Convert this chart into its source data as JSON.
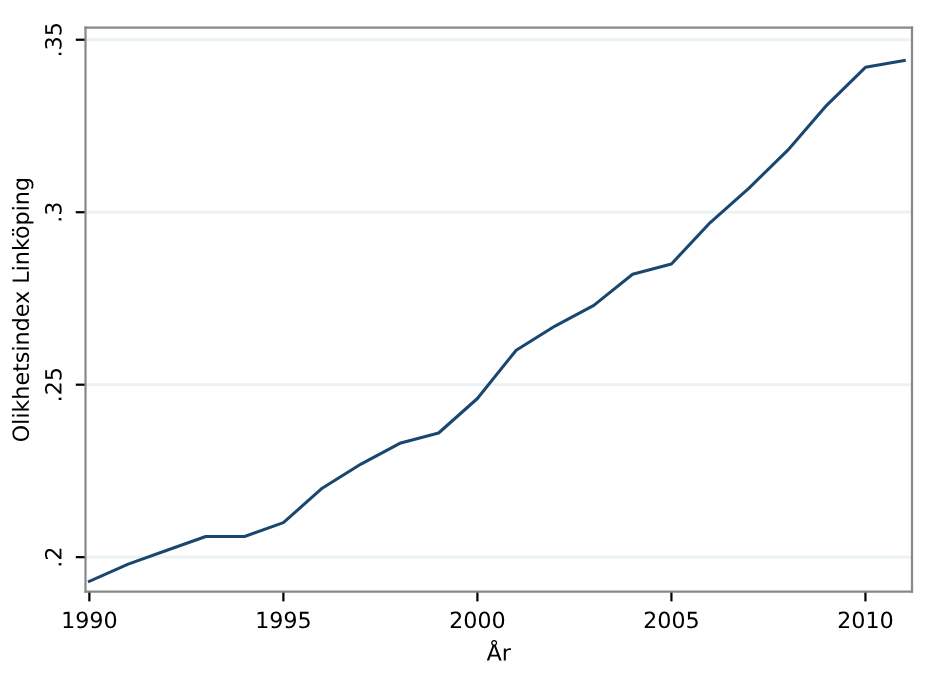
{
  "chart_data": {
    "type": "line",
    "xlabel": "År",
    "ylabel": "Olikhetsindex Linköping",
    "x": [
      1990,
      1991,
      1992,
      1993,
      1994,
      1995,
      1996,
      1997,
      1998,
      1999,
      2000,
      2001,
      2002,
      2003,
      2004,
      2005,
      2006,
      2007,
      2008,
      2009,
      2010,
      2011
    ],
    "series": [
      {
        "color": "#1a476f",
        "values": [
          0.193,
          0.198,
          0.202,
          0.206,
          0.206,
          0.21,
          0.22,
          0.227,
          0.233,
          0.236,
          0.246,
          0.26,
          0.267,
          0.273,
          0.282,
          0.285,
          0.297,
          0.307,
          0.318,
          0.331,
          0.342,
          0.344
        ]
      }
    ],
    "xlim": [
      1989.9,
      2011.2
    ],
    "ylim": [
      0.19,
      0.3535
    ],
    "xticks": [
      1990,
      1995,
      2000,
      2005,
      2010
    ],
    "yticks": [
      {
        "value": 0.2,
        "label": ".2"
      },
      {
        "value": 0.25,
        "label": ".25"
      },
      {
        "value": 0.3,
        "label": ".3"
      },
      {
        "value": 0.35,
        "label": ".35"
      }
    ],
    "grid": "y",
    "marker": "none",
    "line_style": "solid",
    "legend": false
  }
}
